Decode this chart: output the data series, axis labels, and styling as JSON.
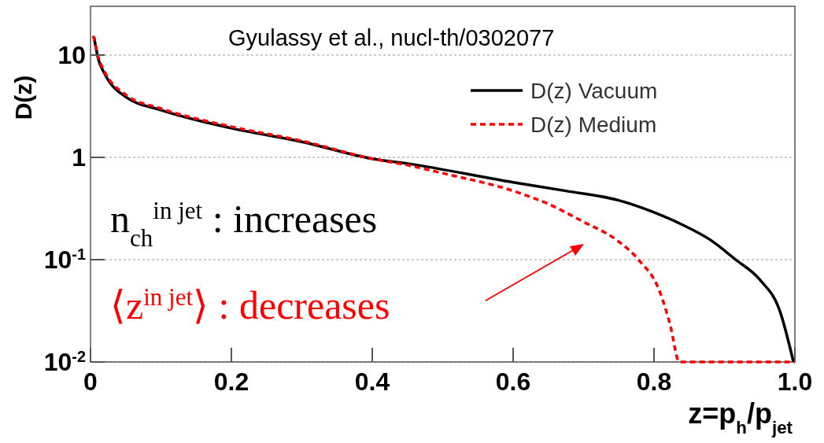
{
  "chart_data": {
    "type": "line",
    "xlabel": "z=p$_{h}$/p$_{jet}$",
    "ylabel": "D(z)",
    "annotations": [
      "Gyulassy et al., nucl-th/0302077",
      "n$_{ch}$$^{in jet}$ : increases",
      "⟨z$^{in jet}$⟩ : decreases"
    ],
    "xlim": [
      0,
      1
    ],
    "xticks": [
      0,
      0.2,
      0.4,
      0.6,
      0.8,
      {
        "value": 1,
        "label": "1.0"
      }
    ],
    "ylim": [
      0.01,
      30
    ],
    "yticks": [
      {
        "value": 0.01,
        "label": "10$^{-2}$"
      },
      {
        "value": 0.1,
        "label": "10$^{-1}$"
      },
      1,
      10
    ],
    "log": "y",
    "grid": "y",
    "legend": "top right",
    "series": [
      {
        "name": "D(z) Vacuum",
        "color": "#000000",
        "line_style": "solid",
        "x": [
          0.005,
          0.011,
          0.02,
          0.05,
          0.1,
          0.2,
          0.3,
          0.4,
          0.45,
          0.6,
          0.675,
          0.75,
          0.8,
          0.84,
          0.88,
          0.916,
          0.95,
          0.979,
          0.998
        ],
        "values": [
          15,
          9.2,
          6.6,
          3.9,
          2.9,
          1.93,
          1.42,
          0.97,
          0.87,
          0.57,
          0.47,
          0.38,
          0.29,
          0.22,
          0.156,
          0.1,
          0.064,
          0.031,
          0.01
        ]
      },
      {
        "name": "D(z) Medium",
        "color": "#ff0000",
        "line_style": "dashed",
        "x": [
          0.004,
          0.011,
          0.02,
          0.05,
          0.1,
          0.2,
          0.3,
          0.4,
          0.45,
          0.5,
          0.6,
          0.65,
          0.697,
          0.75,
          0.778,
          0.808,
          0.823,
          0.836,
          0.9,
          1.0
        ],
        "values": [
          15.5,
          9.6,
          6.9,
          4.1,
          3.0,
          2.0,
          1.45,
          0.97,
          0.84,
          0.7,
          0.47,
          0.35,
          0.24,
          0.15,
          0.1,
          0.049,
          0.023,
          0.01,
          0.01,
          0.01
        ]
      }
    ]
  }
}
